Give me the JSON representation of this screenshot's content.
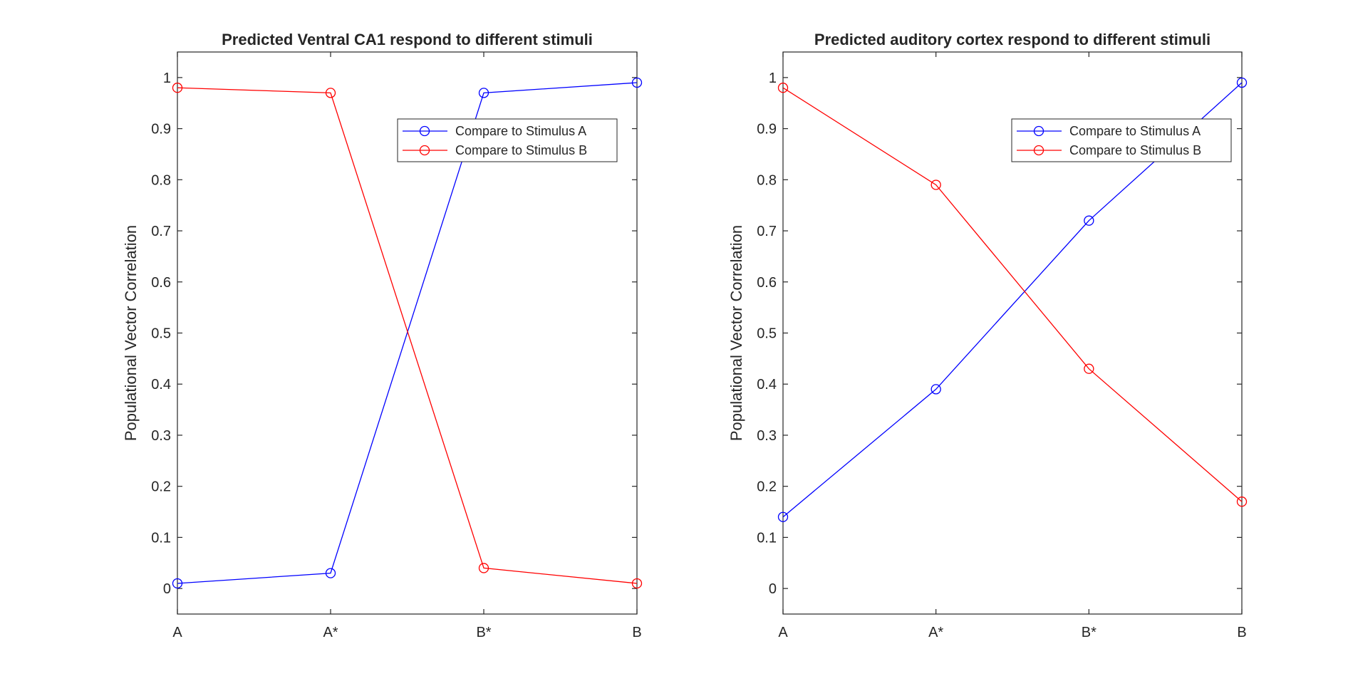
{
  "chart_data": [
    {
      "type": "line",
      "title": "Predicted Ventral CA1 respond to different stimuli",
      "xlabel": "",
      "ylabel": "Populational Vector Correlation",
      "categories": [
        "A",
        "A*",
        "B*",
        "B"
      ],
      "ylim": [
        -0.05,
        1.05
      ],
      "yticks": [
        0,
        0.1,
        0.2,
        0.3,
        0.4,
        0.5,
        0.6,
        0.7,
        0.8,
        0.9,
        1
      ],
      "yticklabels": [
        "0",
        "0.1",
        "0.2",
        "0.3",
        "0.4",
        "0.5",
        "0.6",
        "0.7",
        "0.8",
        "0.9",
        "1"
      ],
      "grid": false,
      "legend_position": "top-right",
      "series": [
        {
          "name": "Compare to Stimulus A",
          "color": "#0000ff",
          "marker": "circle",
          "values": [
            0.01,
            0.03,
            0.97,
            0.99
          ]
        },
        {
          "name": "Compare to Stimulus B",
          "color": "#ff0000",
          "marker": "circle",
          "values": [
            0.98,
            0.97,
            0.04,
            0.01
          ]
        }
      ]
    },
    {
      "type": "line",
      "title": "Predicted auditory cortex respond to different stimuli",
      "xlabel": "",
      "ylabel": "Populational Vector Correlation",
      "categories": [
        "A",
        "A*",
        "B*",
        "B"
      ],
      "ylim": [
        -0.05,
        1.05
      ],
      "yticks": [
        0,
        0.1,
        0.2,
        0.3,
        0.4,
        0.5,
        0.6,
        0.7,
        0.8,
        0.9,
        1
      ],
      "yticklabels": [
        "0",
        "0.1",
        "0.2",
        "0.3",
        "0.4",
        "0.5",
        "0.6",
        "0.7",
        "0.8",
        "0.9",
        "1"
      ],
      "grid": false,
      "legend_position": "top-right",
      "series": [
        {
          "name": "Compare to Stimulus A",
          "color": "#0000ff",
          "marker": "circle",
          "values": [
            0.14,
            0.39,
            0.72,
            0.99
          ]
        },
        {
          "name": "Compare to Stimulus B",
          "color": "#ff0000",
          "marker": "circle",
          "values": [
            0.98,
            0.79,
            0.43,
            0.17
          ]
        }
      ]
    }
  ]
}
